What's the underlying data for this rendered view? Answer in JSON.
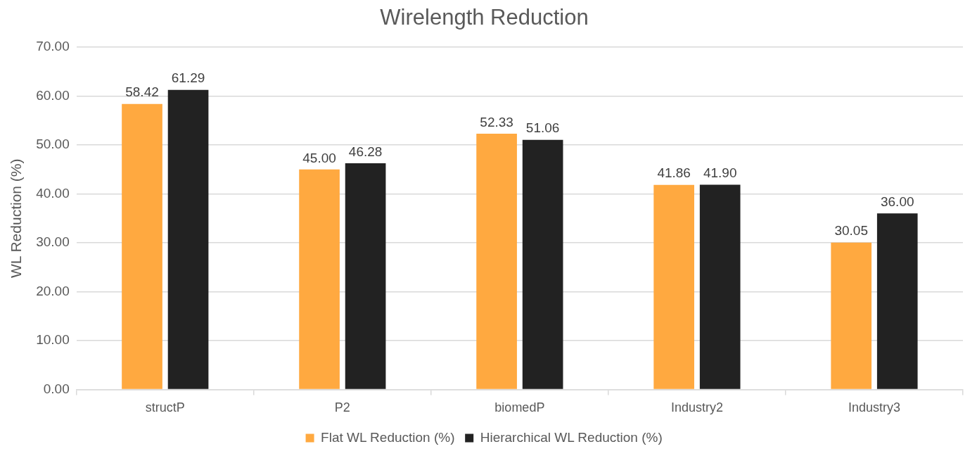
{
  "chart_data": {
    "type": "bar",
    "title": "Wirelength Reduction",
    "ylabel": "WL Reduction (%)",
    "categories": [
      "structP",
      "P2",
      "biomedP",
      "Industry2",
      "Industry3"
    ],
    "series": [
      {
        "name": "Flat WL Reduction (%)",
        "color": "#ffa940",
        "values": [
          58.42,
          45.0,
          52.33,
          41.86,
          30.05
        ],
        "value_labels": [
          "58.42",
          "45.00",
          "52.33",
          "41.86",
          "30.05"
        ]
      },
      {
        "name": "Hierarchical WL Reduction (%)",
        "color": "#222222",
        "values": [
          61.29,
          46.28,
          51.06,
          41.9,
          36.0
        ],
        "value_labels": [
          "61.29",
          "46.28",
          "51.06",
          "41.90",
          "36.00"
        ]
      }
    ],
    "ylim": [
      0,
      70
    ],
    "yticks": [
      {
        "value": 0,
        "label": "0.00"
      },
      {
        "value": 10,
        "label": "10.00"
      },
      {
        "value": 20,
        "label": "20.00"
      },
      {
        "value": 30,
        "label": "30.00"
      },
      {
        "value": 40,
        "label": "40.00"
      },
      {
        "value": 50,
        "label": "50.00"
      },
      {
        "value": 60,
        "label": "60.00"
      },
      {
        "value": 70,
        "label": "70.00"
      }
    ],
    "grid": "y",
    "legend": "bottom"
  }
}
